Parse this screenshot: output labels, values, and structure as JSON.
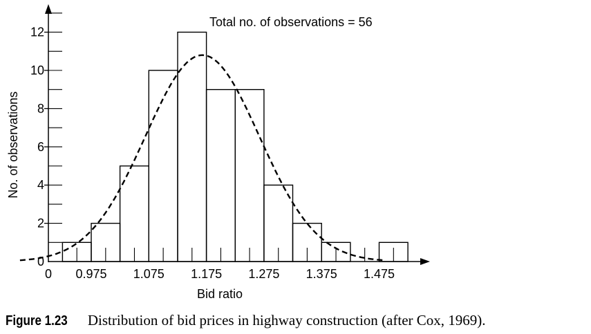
{
  "chart_data": {
    "type": "bar",
    "title": "",
    "annotation": "Total no. of observations = 56",
    "xlabel": "Bid ratio",
    "ylabel": "No. of observations",
    "x_origin_label": "0",
    "x_tick_labels": [
      "0.975",
      "1.075",
      "1.175",
      "1.275",
      "1.375",
      "1.475"
    ],
    "x_tick_values": [
      0.975,
      1.075,
      1.175,
      1.275,
      1.375,
      1.475
    ],
    "y_tick_labels": [
      "0",
      "2",
      "4",
      "6",
      "8",
      "10",
      "12"
    ],
    "y_tick_values": [
      0,
      2,
      4,
      6,
      8,
      10,
      12
    ],
    "ylim": [
      0,
      12
    ],
    "bin_width": 0.05,
    "bins": [
      {
        "x0": 0.925,
        "x1": 0.975,
        "count": 1
      },
      {
        "x0": 0.975,
        "x1": 1.025,
        "count": 2
      },
      {
        "x0": 1.025,
        "x1": 1.075,
        "count": 5
      },
      {
        "x0": 1.075,
        "x1": 1.125,
        "count": 10
      },
      {
        "x0": 1.125,
        "x1": 1.175,
        "count": 12
      },
      {
        "x0": 1.175,
        "x1": 1.225,
        "count": 9
      },
      {
        "x0": 1.225,
        "x1": 1.275,
        "count": 9
      },
      {
        "x0": 1.275,
        "x1": 1.325,
        "count": 4
      },
      {
        "x0": 1.325,
        "x1": 1.375,
        "count": 2
      },
      {
        "x0": 1.375,
        "x1": 1.425,
        "count": 1
      },
      {
        "x0": 1.475,
        "x1": 1.525,
        "count": 1
      }
    ],
    "fitted_curve": {
      "type": "normal",
      "style": "dashed",
      "mean": 1.168,
      "std": 0.099,
      "peak": 10.8
    },
    "grid": false,
    "legend": "none"
  },
  "caption": {
    "label": "Figure 1.23",
    "text": "Distribution of bid prices in highway construction (after Cox, 1969)."
  }
}
